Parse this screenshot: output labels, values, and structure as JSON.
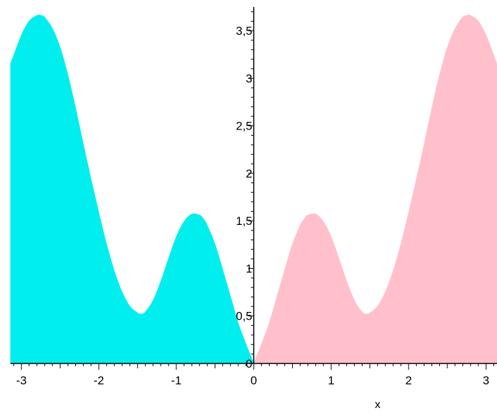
{
  "chart_data": {
    "type": "area",
    "title": "",
    "xlabel": "x",
    "ylabel": "",
    "xlim": [
      -3.14159,
      3.14159
    ],
    "ylim": [
      0,
      3.75
    ],
    "grid": false,
    "legend": "none",
    "x_ticks": [
      {
        "value": -3,
        "label": "-3"
      },
      {
        "value": -2,
        "label": "-2"
      },
      {
        "value": -1,
        "label": "-1"
      },
      {
        "value": 0,
        "label": "0"
      },
      {
        "value": 1,
        "label": "1"
      },
      {
        "value": 2,
        "label": "2"
      },
      {
        "value": 3,
        "label": "3"
      }
    ],
    "y_ticks": [
      {
        "value": 0,
        "label": "0"
      },
      {
        "value": 0.5,
        "label": "0,5"
      },
      {
        "value": 1,
        "label": "1"
      },
      {
        "value": 1.5,
        "label": "1,5"
      },
      {
        "value": 2,
        "label": "2"
      },
      {
        "value": 2.5,
        "label": "2,5"
      },
      {
        "value": 3,
        "label": "3"
      },
      {
        "value": 3.5,
        "label": "3,5"
      }
    ],
    "series": [
      {
        "color": "#00eeee",
        "x": [
          -3.14,
          -3.0,
          -2.9,
          -2.8,
          -2.75,
          -2.7,
          -2.6,
          -2.5,
          -2.4,
          -2.3,
          -2.2,
          -2.1,
          -2.0,
          -1.9,
          -1.8,
          -1.7,
          -1.6,
          -1.5,
          -1.45,
          -1.4,
          -1.3,
          -1.2,
          -1.1,
          -1.0,
          -0.9,
          -0.8,
          -0.7,
          -0.65,
          -0.6,
          -0.5,
          -0.4,
          -0.3,
          -0.2,
          -0.1,
          0.0
        ],
        "values": [
          3.15,
          3.45,
          3.6,
          3.66,
          3.66,
          3.64,
          3.52,
          3.32,
          3.03,
          2.68,
          2.3,
          1.93,
          1.58,
          1.25,
          0.97,
          0.75,
          0.6,
          0.53,
          0.52,
          0.54,
          0.66,
          0.86,
          1.1,
          1.33,
          1.49,
          1.57,
          1.56,
          1.52,
          1.45,
          1.25,
          0.98,
          0.7,
          0.42,
          0.2,
          0.0
        ]
      },
      {
        "color": "#ffc0cb",
        "x": [
          0.0,
          0.1,
          0.2,
          0.3,
          0.4,
          0.5,
          0.6,
          0.65,
          0.7,
          0.8,
          0.9,
          1.0,
          1.1,
          1.2,
          1.3,
          1.4,
          1.45,
          1.5,
          1.6,
          1.7,
          1.8,
          1.9,
          2.0,
          2.1,
          2.2,
          2.3,
          2.4,
          2.5,
          2.6,
          2.7,
          2.75,
          2.8,
          2.9,
          3.0,
          3.14
        ],
        "values": [
          0.0,
          0.2,
          0.42,
          0.7,
          0.98,
          1.25,
          1.45,
          1.52,
          1.56,
          1.57,
          1.49,
          1.33,
          1.1,
          0.86,
          0.66,
          0.54,
          0.52,
          0.53,
          0.6,
          0.75,
          0.97,
          1.25,
          1.58,
          1.93,
          2.3,
          2.68,
          3.03,
          3.32,
          3.52,
          3.64,
          3.66,
          3.66,
          3.6,
          3.45,
          3.15
        ]
      }
    ]
  }
}
